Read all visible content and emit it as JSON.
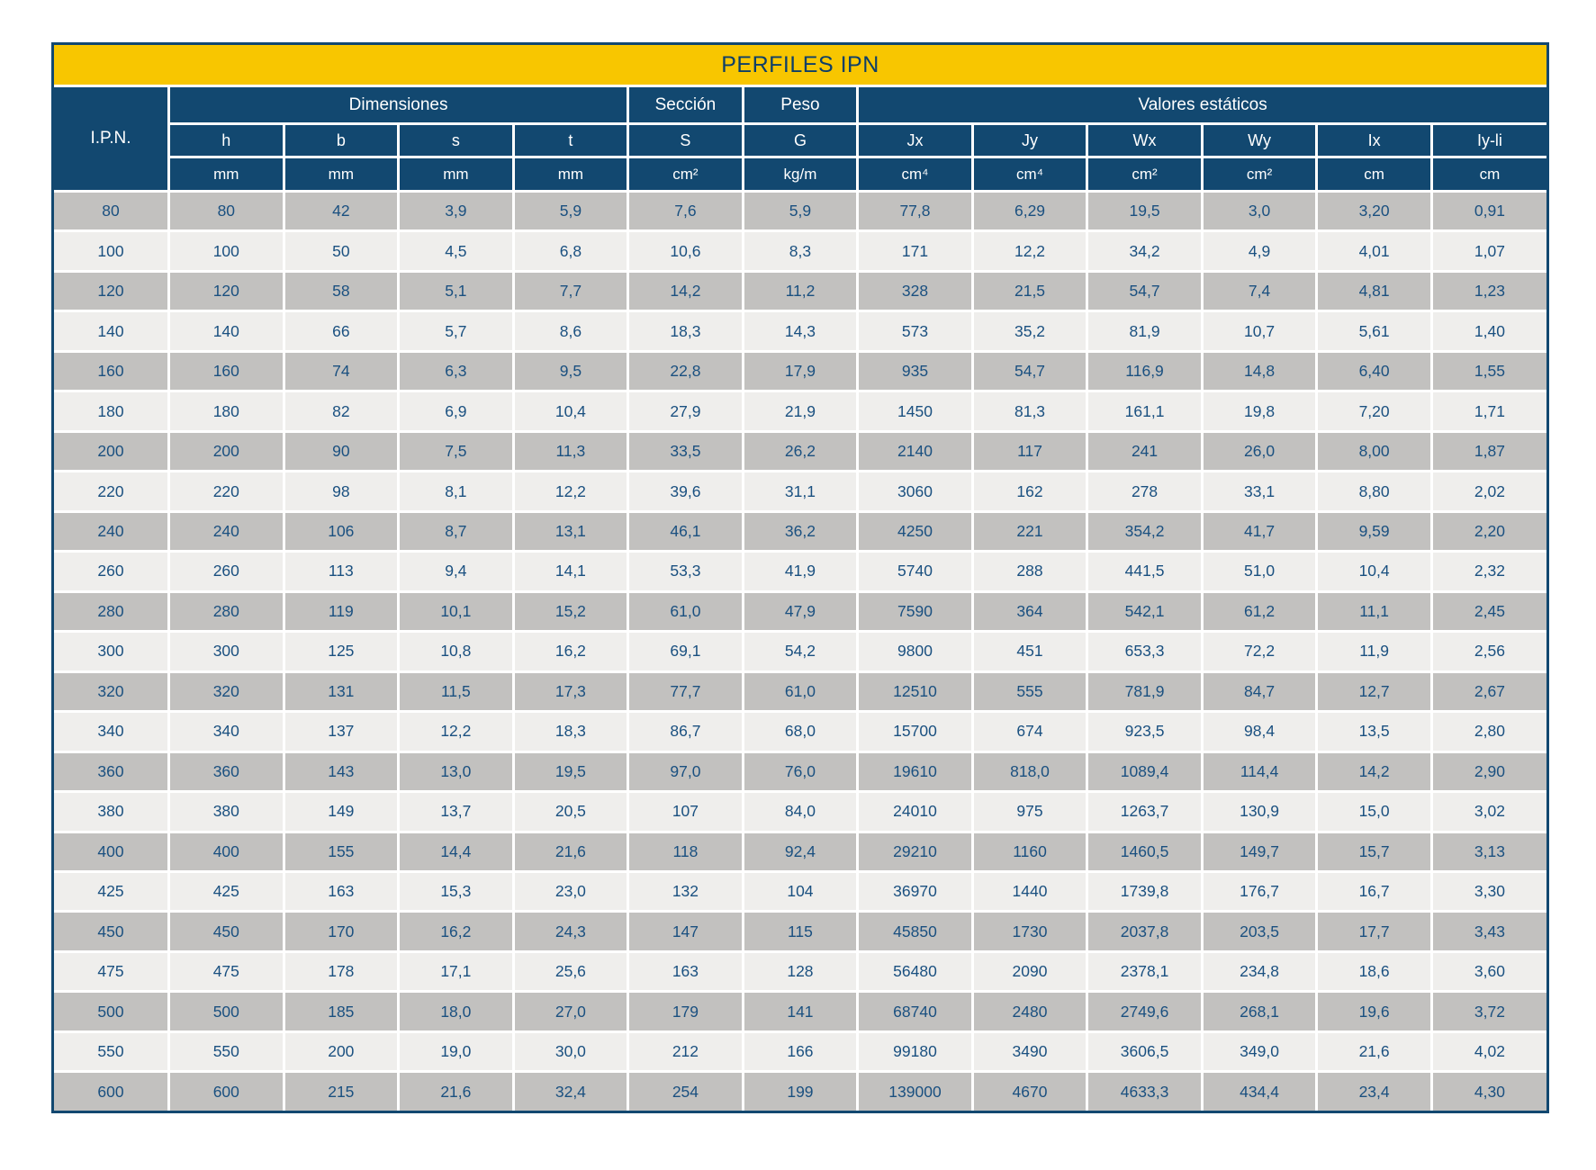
{
  "title": "PERFILES IPN",
  "colors": {
    "navy": "#124870",
    "navy_text": "#0E3F68",
    "yellow": "#F8C600",
    "row_dark": "#C2C1BF",
    "row_light": "#EFEEEC",
    "grid": "#FFFFFF",
    "data_text": "#1A5080"
  },
  "header": {
    "ipn_label": "I.P.N.",
    "groups": [
      {
        "label": "Dimensiones",
        "span": 4
      },
      {
        "label": "Sección",
        "span": 1
      },
      {
        "label": "Peso",
        "span": 1
      },
      {
        "label": "Valores estáticos",
        "span": 6
      }
    ],
    "columns": [
      {
        "label": "h",
        "unit": "mm"
      },
      {
        "label": "b",
        "unit": "mm"
      },
      {
        "label": "s",
        "unit": "mm"
      },
      {
        "label": "t",
        "unit": "mm"
      },
      {
        "label": "S",
        "unit": "cm²"
      },
      {
        "label": "G",
        "unit": "kg/m"
      },
      {
        "label": "Jx",
        "unit": "cm⁴"
      },
      {
        "label": "Jy",
        "unit": "cm⁴"
      },
      {
        "label": "Wx",
        "unit": "cm²"
      },
      {
        "label": "Wy",
        "unit": "cm²"
      },
      {
        "label": "Ix",
        "unit": "cm"
      },
      {
        "label": "Iy-li",
        "unit": "cm"
      }
    ]
  },
  "rows": [
    [
      "80",
      "80",
      "42",
      "3,9",
      "5,9",
      "7,6",
      "5,9",
      "77,8",
      "6,29",
      "19,5",
      "3,0",
      "3,20",
      "0,91"
    ],
    [
      "100",
      "100",
      "50",
      "4,5",
      "6,8",
      "10,6",
      "8,3",
      "171",
      "12,2",
      "34,2",
      "4,9",
      "4,01",
      "1,07"
    ],
    [
      "120",
      "120",
      "58",
      "5,1",
      "7,7",
      "14,2",
      "11,2",
      "328",
      "21,5",
      "54,7",
      "7,4",
      "4,81",
      "1,23"
    ],
    [
      "140",
      "140",
      "66",
      "5,7",
      "8,6",
      "18,3",
      "14,3",
      "573",
      "35,2",
      "81,9",
      "10,7",
      "5,61",
      "1,40"
    ],
    [
      "160",
      "160",
      "74",
      "6,3",
      "9,5",
      "22,8",
      "17,9",
      "935",
      "54,7",
      "116,9",
      "14,8",
      "6,40",
      "1,55"
    ],
    [
      "180",
      "180",
      "82",
      "6,9",
      "10,4",
      "27,9",
      "21,9",
      "1450",
      "81,3",
      "161,1",
      "19,8",
      "7,20",
      "1,71"
    ],
    [
      "200",
      "200",
      "90",
      "7,5",
      "11,3",
      "33,5",
      "26,2",
      "2140",
      "117",
      "241",
      "26,0",
      "8,00",
      "1,87"
    ],
    [
      "220",
      "220",
      "98",
      "8,1",
      "12,2",
      "39,6",
      "31,1",
      "3060",
      "162",
      "278",
      "33,1",
      "8,80",
      "2,02"
    ],
    [
      "240",
      "240",
      "106",
      "8,7",
      "13,1",
      "46,1",
      "36,2",
      "4250",
      "221",
      "354,2",
      "41,7",
      "9,59",
      "2,20"
    ],
    [
      "260",
      "260",
      "113",
      "9,4",
      "14,1",
      "53,3",
      "41,9",
      "5740",
      "288",
      "441,5",
      "51,0",
      "10,4",
      "2,32"
    ],
    [
      "280",
      "280",
      "119",
      "10,1",
      "15,2",
      "61,0",
      "47,9",
      "7590",
      "364",
      "542,1",
      "61,2",
      "11,1",
      "2,45"
    ],
    [
      "300",
      "300",
      "125",
      "10,8",
      "16,2",
      "69,1",
      "54,2",
      "9800",
      "451",
      "653,3",
      "72,2",
      "11,9",
      "2,56"
    ],
    [
      "320",
      "320",
      "131",
      "11,5",
      "17,3",
      "77,7",
      "61,0",
      "12510",
      "555",
      "781,9",
      "84,7",
      "12,7",
      "2,67"
    ],
    [
      "340",
      "340",
      "137",
      "12,2",
      "18,3",
      "86,7",
      "68,0",
      "15700",
      "674",
      "923,5",
      "98,4",
      "13,5",
      "2,80"
    ],
    [
      "360",
      "360",
      "143",
      "13,0",
      "19,5",
      "97,0",
      "76,0",
      "19610",
      "818,0",
      "1089,4",
      "114,4",
      "14,2",
      "2,90"
    ],
    [
      "380",
      "380",
      "149",
      "13,7",
      "20,5",
      "107",
      "84,0",
      "24010",
      "975",
      "1263,7",
      "130,9",
      "15,0",
      "3,02"
    ],
    [
      "400",
      "400",
      "155",
      "14,4",
      "21,6",
      "118",
      "92,4",
      "29210",
      "1160",
      "1460,5",
      "149,7",
      "15,7",
      "3,13"
    ],
    [
      "425",
      "425",
      "163",
      "15,3",
      "23,0",
      "132",
      "104",
      "36970",
      "1440",
      "1739,8",
      "176,7",
      "16,7",
      "3,30"
    ],
    [
      "450",
      "450",
      "170",
      "16,2",
      "24,3",
      "147",
      "115",
      "45850",
      "1730",
      "2037,8",
      "203,5",
      "17,7",
      "3,43"
    ],
    [
      "475",
      "475",
      "178",
      "17,1",
      "25,6",
      "163",
      "128",
      "56480",
      "2090",
      "2378,1",
      "234,8",
      "18,6",
      "3,60"
    ],
    [
      "500",
      "500",
      "185",
      "18,0",
      "27,0",
      "179",
      "141",
      "68740",
      "2480",
      "2749,6",
      "268,1",
      "19,6",
      "3,72"
    ],
    [
      "550",
      "550",
      "200",
      "19,0",
      "30,0",
      "212",
      "166",
      "99180",
      "3490",
      "3606,5",
      "349,0",
      "21,6",
      "4,02"
    ],
    [
      "600",
      "600",
      "215",
      "21,6",
      "32,4",
      "254",
      "199",
      "139000",
      "4670",
      "4633,3",
      "434,4",
      "23,4",
      "4,30"
    ]
  ]
}
